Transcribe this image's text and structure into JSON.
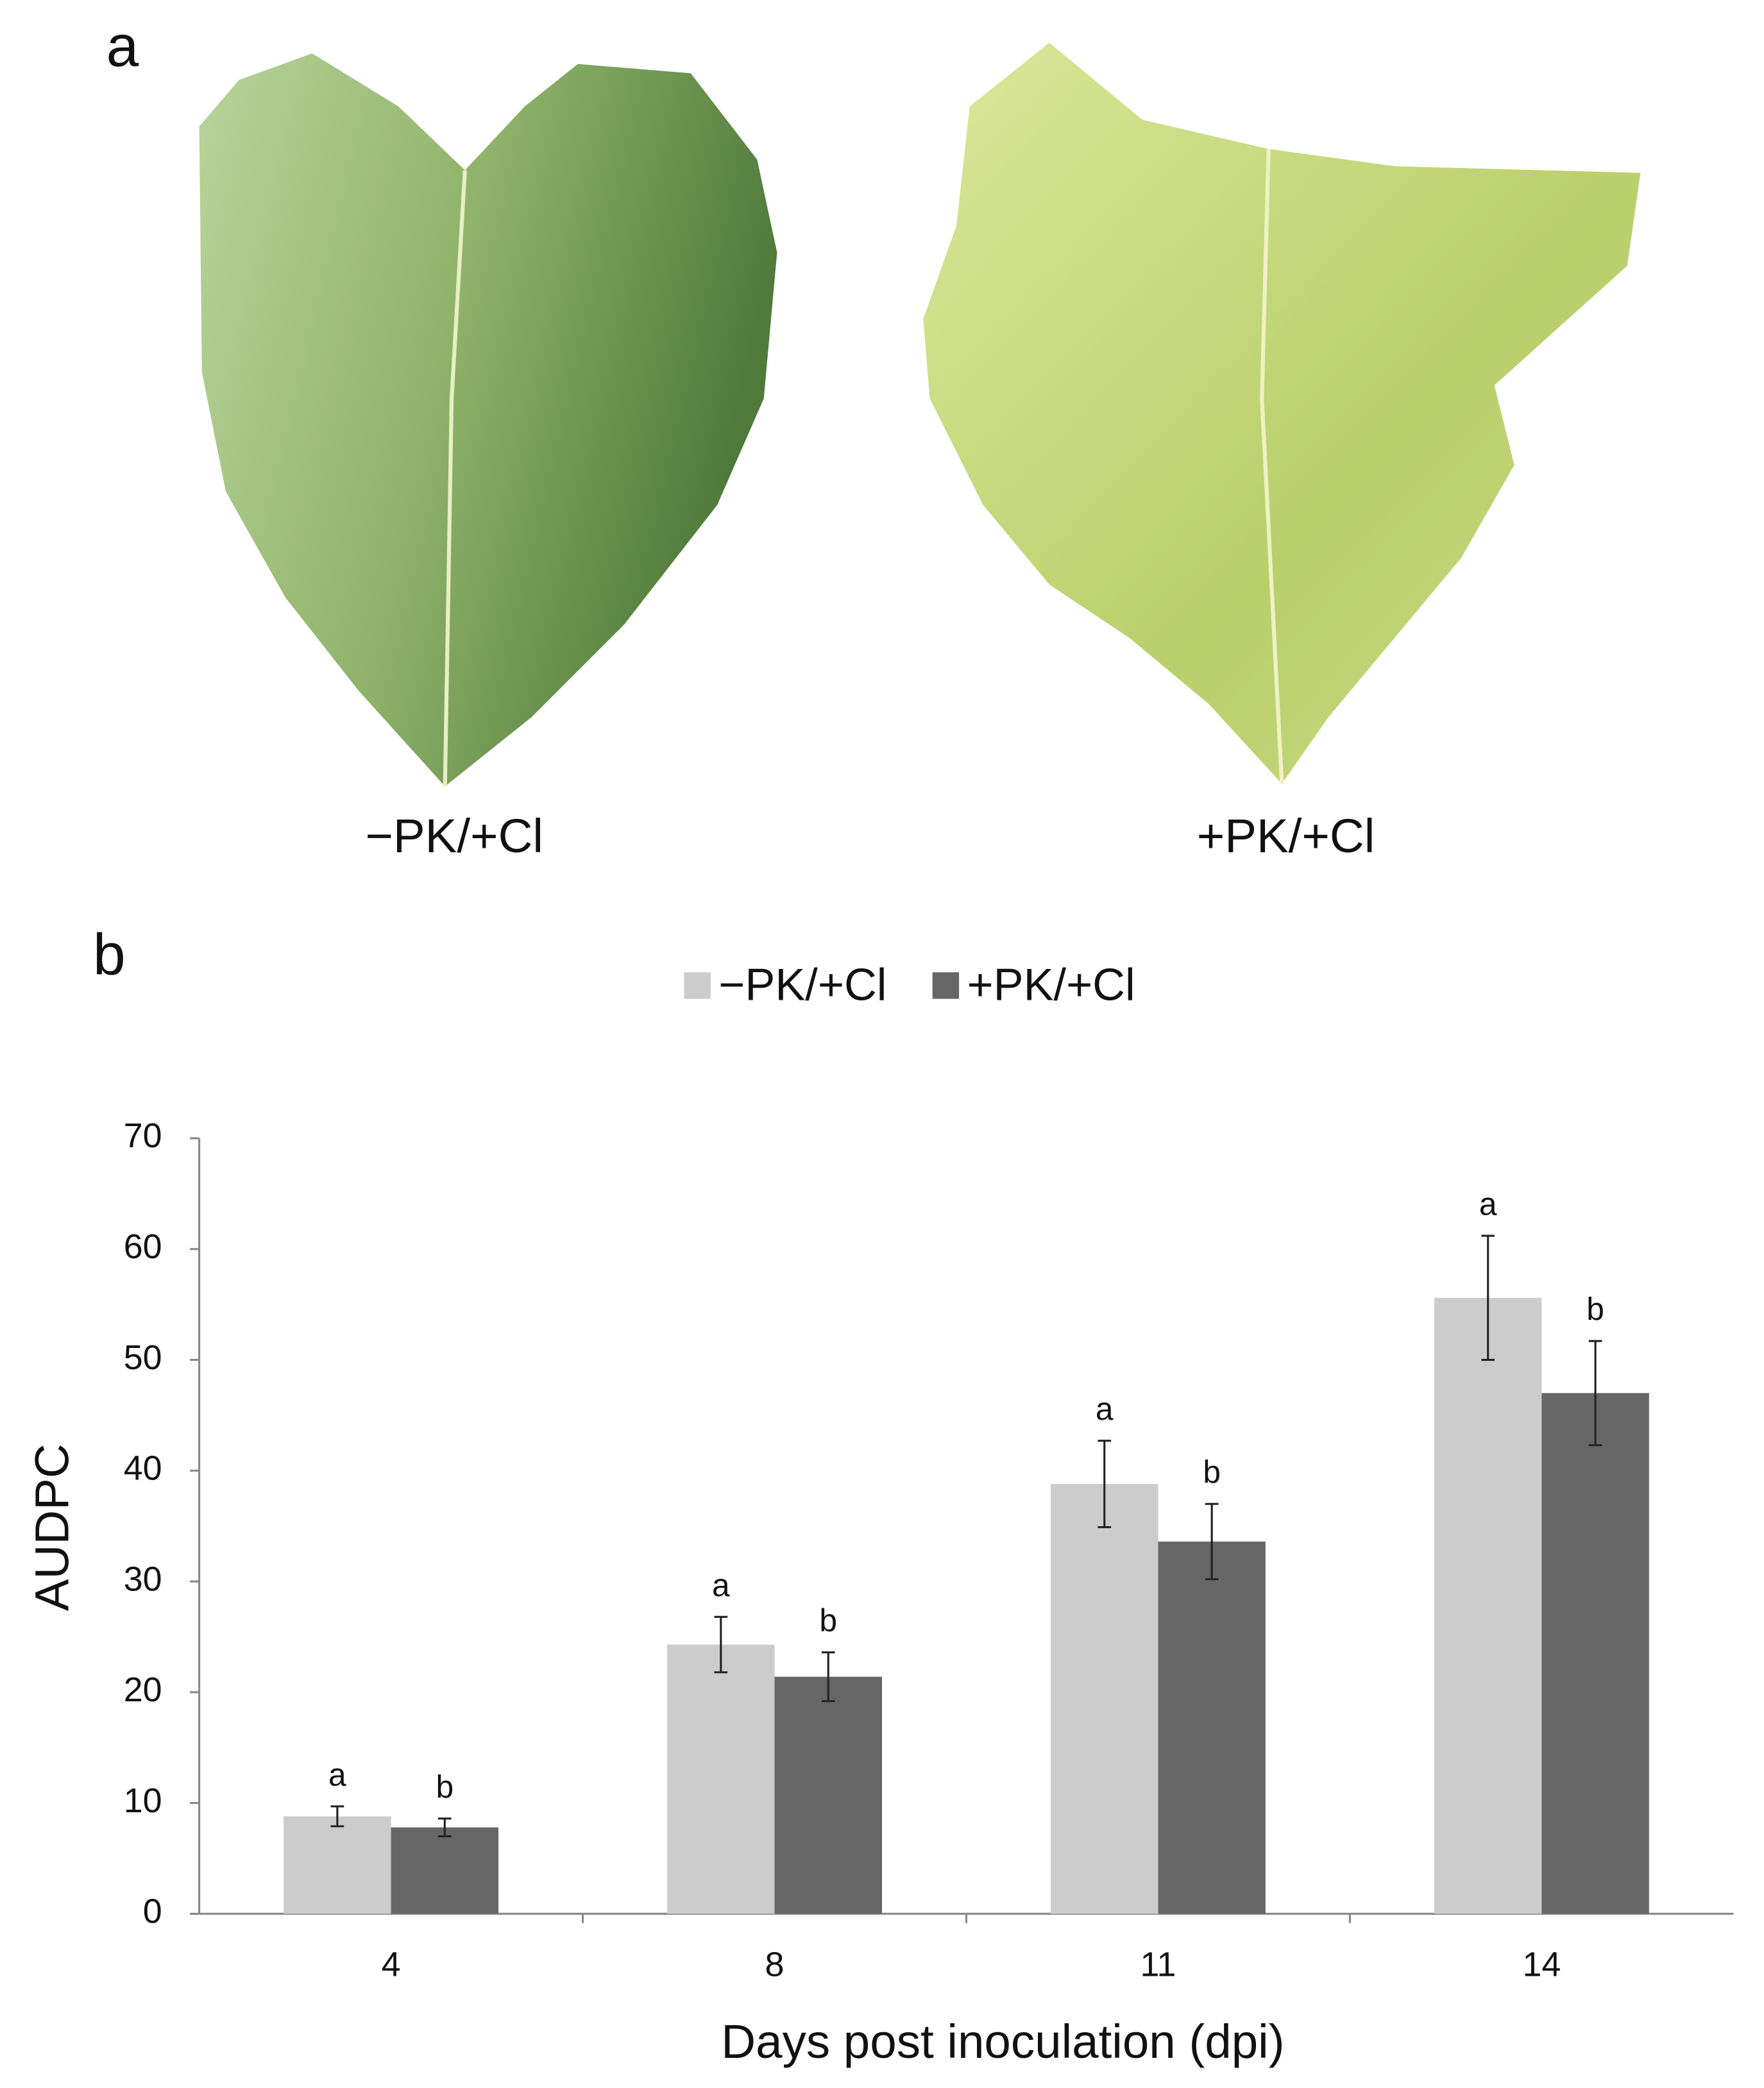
{
  "panel_a": {
    "label": "a",
    "captions": [
      "−PK/+Cl",
      "+PK/+Cl"
    ]
  },
  "panel_b": {
    "label": "b"
  },
  "chart_data": {
    "type": "bar",
    "x_label": "Days post inoculation (dpi)",
    "y_label": "AUDPC",
    "categories": [
      "4",
      "8",
      "11",
      "14"
    ],
    "series": [
      {
        "name": "−PK/+Cl",
        "color": "#cccccc",
        "values": [
          8.8,
          24.3,
          38.8,
          55.6
        ],
        "errors": [
          0.9,
          2.5,
          3.9,
          5.6
        ],
        "letters": [
          "a",
          "a",
          "a",
          "a"
        ]
      },
      {
        "name": "+PK/+Cl",
        "color": "#666666",
        "values": [
          7.8,
          21.4,
          33.6,
          47.0
        ],
        "errors": [
          0.8,
          2.2,
          3.4,
          4.7
        ],
        "letters": [
          "b",
          "b",
          "b",
          "b"
        ]
      }
    ],
    "ylim": [
      0,
      70
    ],
    "yticks": [
      0,
      10,
      20,
      30,
      40,
      50,
      60,
      70
    ],
    "grid": false,
    "legend": "top"
  }
}
